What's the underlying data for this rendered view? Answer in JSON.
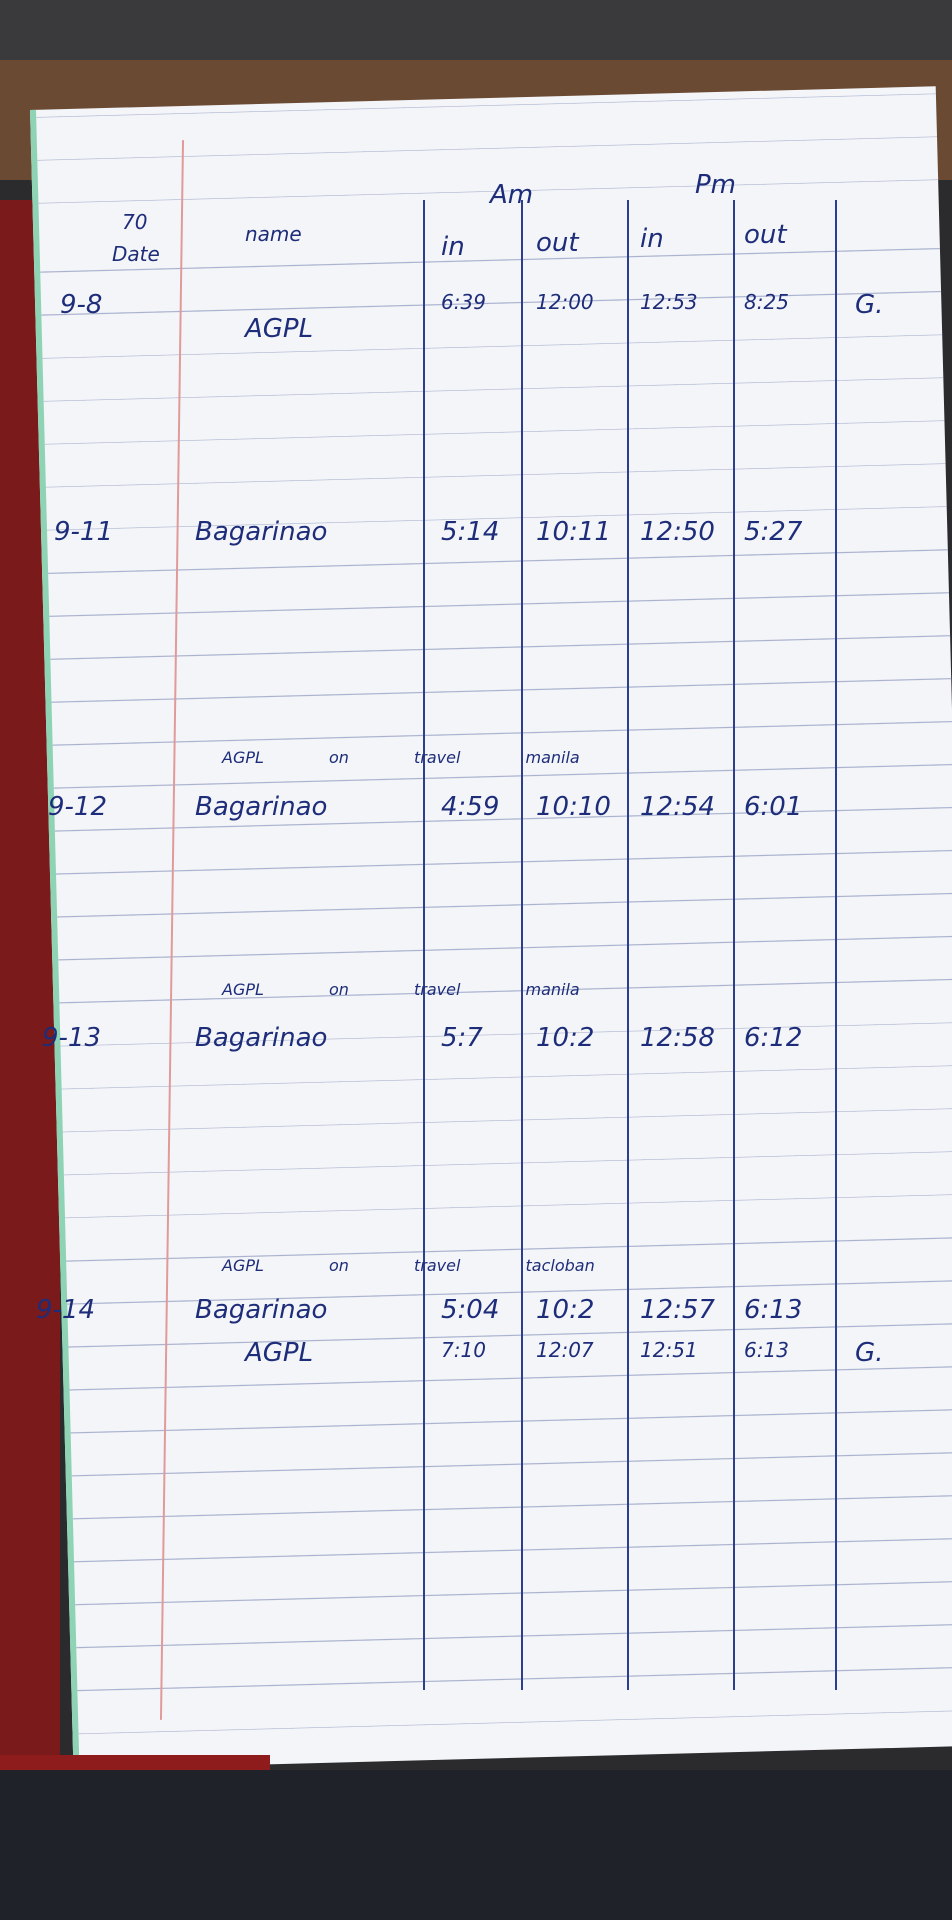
{
  "page_number": "70",
  "header": {
    "date": "Date",
    "name": "name",
    "am": "Am",
    "pm": "Pm",
    "columns": [
      "in",
      "out",
      "in",
      "out"
    ]
  },
  "entries": [
    {
      "date": "9-8",
      "rows": [
        {
          "name": "AGPL",
          "times": [
            "6:39",
            "12:00",
            "12:53",
            "8:25"
          ],
          "signature": "G."
        }
      ]
    },
    {
      "date": "9-11",
      "rows": [
        {
          "name": "Bagarinao",
          "times": [
            "5:14",
            "10:11",
            "12:50",
            "5:27"
          ]
        }
      ]
    },
    {
      "date": "9-12",
      "rows": [
        {
          "name": "Bagarinao",
          "times": [
            "4:59",
            "10:10",
            "12:54",
            "6:01"
          ]
        }
      ]
    },
    {
      "date": "9-13",
      "rows": [
        {
          "name": "Bagarinao",
          "times": [
            "5:7",
            "10:2",
            "12:58",
            "6:12"
          ]
        }
      ]
    },
    {
      "date": "9-14",
      "rows": [
        {
          "name": "Bagarinao",
          "times": [
            "5:04",
            "10:2",
            "12:57",
            "6:13"
          ]
        },
        {
          "name": "AGPL",
          "times": [
            "7:10",
            "12:07",
            "12:51",
            "6:13"
          ],
          "signature": "G."
        }
      ]
    }
  ],
  "notes": [
    "AGPL on travel manila",
    "AGPL on travel manila",
    "AGPL on travel tacloban"
  ]
}
